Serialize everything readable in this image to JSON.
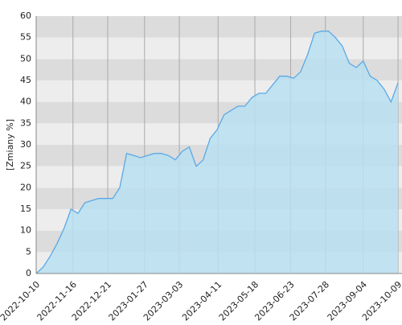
{
  "chart_data": {
    "type": "area",
    "y_label": "[Zmiany %]",
    "x": [
      "2022-10-10",
      "2022-10-17",
      "2022-10-24",
      "2022-10-31",
      "2022-11-07",
      "2022-11-14",
      "2022-11-21",
      "2022-11-28",
      "2022-12-05",
      "2022-12-12",
      "2022-12-19",
      "2022-12-26",
      "2023-01-02",
      "2023-01-09",
      "2023-01-16",
      "2023-01-23",
      "2023-01-30",
      "2023-02-06",
      "2023-02-13",
      "2023-02-20",
      "2023-02-27",
      "2023-03-06",
      "2023-03-13",
      "2023-03-20",
      "2023-03-27",
      "2023-04-03",
      "2023-04-10",
      "2023-04-17",
      "2023-04-24",
      "2023-05-01",
      "2023-05-08",
      "2023-05-15",
      "2023-05-22",
      "2023-05-29",
      "2023-06-05",
      "2023-06-12",
      "2023-06-19",
      "2023-06-26",
      "2023-07-03",
      "2023-07-10",
      "2023-07-17",
      "2023-07-24",
      "2023-07-31",
      "2023-08-07",
      "2023-08-14",
      "2023-08-21",
      "2023-08-28",
      "2023-09-04",
      "2023-09-11",
      "2023-09-18",
      "2023-09-25",
      "2023-10-02",
      "2023-10-09"
    ],
    "values": [
      0,
      1.5,
      4,
      7,
      10.5,
      15,
      14,
      16.5,
      17,
      17.5,
      17.5,
      17.5,
      20,
      28,
      27.5,
      27,
      27.5,
      28,
      28,
      27.5,
      26.5,
      28.5,
      29.5,
      25,
      26.5,
      31.5,
      33.5,
      37,
      38,
      39,
      39,
      41,
      42,
      42,
      44,
      46,
      46,
      45.5,
      47,
      51,
      56,
      56.5,
      56.5,
      55,
      53,
      49,
      48,
      49.5,
      46,
      45,
      43,
      40,
      44.5
    ],
    "color": "#5aa9e6",
    "fill": "#b9dff0",
    "xlim": [
      "2022-10-10",
      "2023-10-13"
    ],
    "xticks": [
      "2022-10-10",
      "2022-11-16",
      "2022-12-21",
      "2023-01-27",
      "2023-03-03",
      "2023-04-11",
      "2023-05-18",
      "2023-06-23",
      "2023-07-28",
      "2023-09-04",
      "2023-10-09"
    ],
    "ylim": [
      0,
      60
    ],
    "yticks": [
      0,
      5,
      10,
      15,
      20,
      25,
      30,
      35,
      40,
      45,
      50,
      55,
      60
    ],
    "grid": true
  }
}
